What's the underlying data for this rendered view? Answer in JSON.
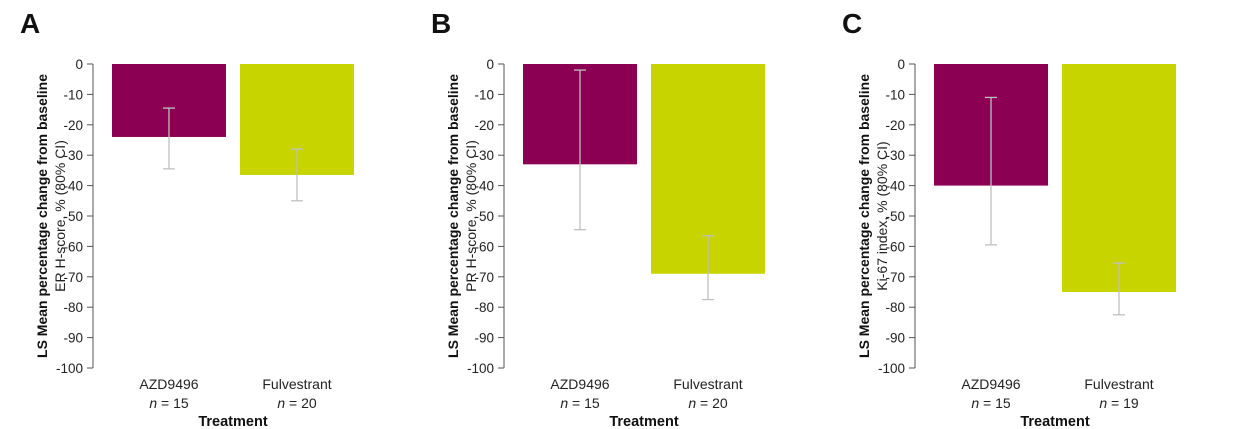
{
  "chart_data": [
    {
      "type": "bar",
      "panel_label": "A",
      "ylabel_line1": "LS Mean percentage change from baseline",
      "ylabel_line2": "ER H-score, % (80% CI)",
      "xlabel": "Treatment",
      "categories": [
        "AZD9496",
        "Fulvestrant"
      ],
      "n_values": [
        "15",
        "20"
      ],
      "values": [
        -24,
        -36.5
      ],
      "ci_upper": [
        -14.5,
        -28
      ],
      "ci_lower": [
        -34.5,
        -45
      ],
      "colors": [
        "#8b0052",
        "#c8d400"
      ],
      "ylim": [
        -100,
        0
      ],
      "yticks": [
        0,
        -10,
        -20,
        -30,
        -40,
        -50,
        -60,
        -70,
        -80,
        -90,
        -100
      ],
      "ytick_labels": [
        "0",
        "-10",
        "-20",
        "-30",
        "-40",
        "-50",
        "-60",
        "-70",
        "-80",
        "-90",
        "-100"
      ],
      "grid": false
    },
    {
      "type": "bar",
      "panel_label": "B",
      "ylabel_line1": "LS Mean percentage change from baseline",
      "ylabel_line2": "PR H-score, % (80% CI)",
      "xlabel": "Treatment",
      "categories": [
        "AZD9496",
        "Fulvestrant"
      ],
      "n_values": [
        "15",
        "20"
      ],
      "values": [
        -33,
        -69
      ],
      "ci_upper": [
        -2,
        -56.5
      ],
      "ci_lower": [
        -54.5,
        -77.5
      ],
      "colors": [
        "#8b0052",
        "#c8d400"
      ],
      "ylim": [
        -100,
        0
      ],
      "yticks": [
        0,
        -10,
        -20,
        -30,
        -40,
        -50,
        -60,
        -70,
        -80,
        -90,
        -100
      ],
      "ytick_labels": [
        "0",
        "-10",
        "-20",
        "-30",
        "-40",
        "-50",
        "-60",
        "-70",
        "-80",
        "-90",
        "-100"
      ],
      "grid": false
    },
    {
      "type": "bar",
      "panel_label": "C",
      "ylabel_line1": "LS Mean percentage change from baseline",
      "ylabel_line2": "Ki-67 index, % (80% CI)",
      "xlabel": "Treatment",
      "categories": [
        "AZD9496",
        "Fulvestrant"
      ],
      "n_values": [
        "15",
        "19"
      ],
      "values": [
        -40,
        -75
      ],
      "ci_upper": [
        -11,
        -65.5
      ],
      "ci_lower": [
        -59.5,
        -82.5
      ],
      "colors": [
        "#8b0052",
        "#c8d400"
      ],
      "ylim": [
        -100,
        0
      ],
      "yticks": [
        0,
        -10,
        -20,
        -30,
        -40,
        -50,
        -60,
        -70,
        -80,
        -90,
        -100
      ],
      "ytick_labels": [
        "0",
        "-10",
        "-20",
        "-30",
        "-40",
        "-50",
        "-60",
        "-70",
        "-80",
        "-90",
        "-100"
      ],
      "grid": false
    }
  ]
}
